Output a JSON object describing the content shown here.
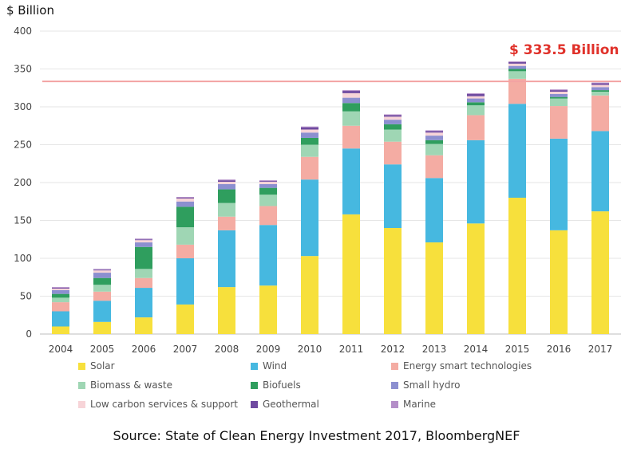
{
  "chart_data": {
    "type": "bar",
    "stacked": true,
    "ylabel": "$ Billion",
    "ylim": [
      0,
      400
    ],
    "yticks": [
      0,
      50,
      100,
      150,
      200,
      250,
      300,
      350,
      400
    ],
    "grid": true,
    "legend_position": "bottom",
    "categories": [
      "2004",
      "2005",
      "2006",
      "2007",
      "2008",
      "2009",
      "2010",
      "2011",
      "2012",
      "2013",
      "2014",
      "2015",
      "2016",
      "2017"
    ],
    "series": [
      {
        "name": "Solar",
        "color": "#f7e03c",
        "values": [
          10,
          16,
          22,
          39,
          62,
          64,
          103,
          158,
          140,
          121,
          146,
          180,
          137,
          162
        ]
      },
      {
        "name": "Wind",
        "color": "#46b8e0",
        "values": [
          20,
          28,
          39,
          61,
          75,
          80,
          101,
          87,
          84,
          85,
          110,
          124,
          121,
          106
        ]
      },
      {
        "name": "Energy smart technologies",
        "color": "#f4aca3",
        "values": [
          12,
          12,
          13,
          18,
          18,
          25,
          30,
          30,
          30,
          30,
          33,
          33,
          43,
          47
        ]
      },
      {
        "name": "Biomass & waste",
        "color": "#9fd6b4",
        "values": [
          6,
          9,
          12,
          23,
          18,
          15,
          16,
          19,
          16,
          15,
          13,
          10,
          10,
          5
        ]
      },
      {
        "name": "Biofuels",
        "color": "#2f9e5e",
        "values": [
          5,
          9,
          29,
          27,
          18,
          9,
          9,
          11,
          7,
          5,
          4,
          3,
          2,
          2
        ]
      },
      {
        "name": "Small hydro",
        "color": "#8c8fd0",
        "values": [
          5,
          7,
          6,
          7,
          7,
          5,
          7,
          7,
          6,
          6,
          5,
          4,
          4,
          4
        ]
      },
      {
        "name": "Low carbon services & support",
        "color": "#f7d4d8",
        "values": [
          2,
          3,
          3,
          4,
          3,
          3,
          4,
          6,
          4,
          4,
          3,
          3,
          3,
          3
        ]
      },
      {
        "name": "Geothermal",
        "color": "#6f4aa0",
        "values": [
          1,
          1,
          1,
          1,
          2,
          1,
          3,
          3,
          2,
          2,
          3,
          2,
          2,
          2
        ]
      },
      {
        "name": "Marine",
        "color": "#b48ec8",
        "values": [
          1,
          1,
          1,
          1,
          1,
          1,
          1,
          1,
          1,
          1,
          1,
          1,
          1,
          1
        ]
      }
    ],
    "reference_line": {
      "value": 333.5,
      "color": "#f3a3a3",
      "label": "$ 333.5 Billion",
      "label_color": "#e0312a"
    },
    "source": "Source: State of Clean Energy Investment 2017, BloombergNEF"
  }
}
